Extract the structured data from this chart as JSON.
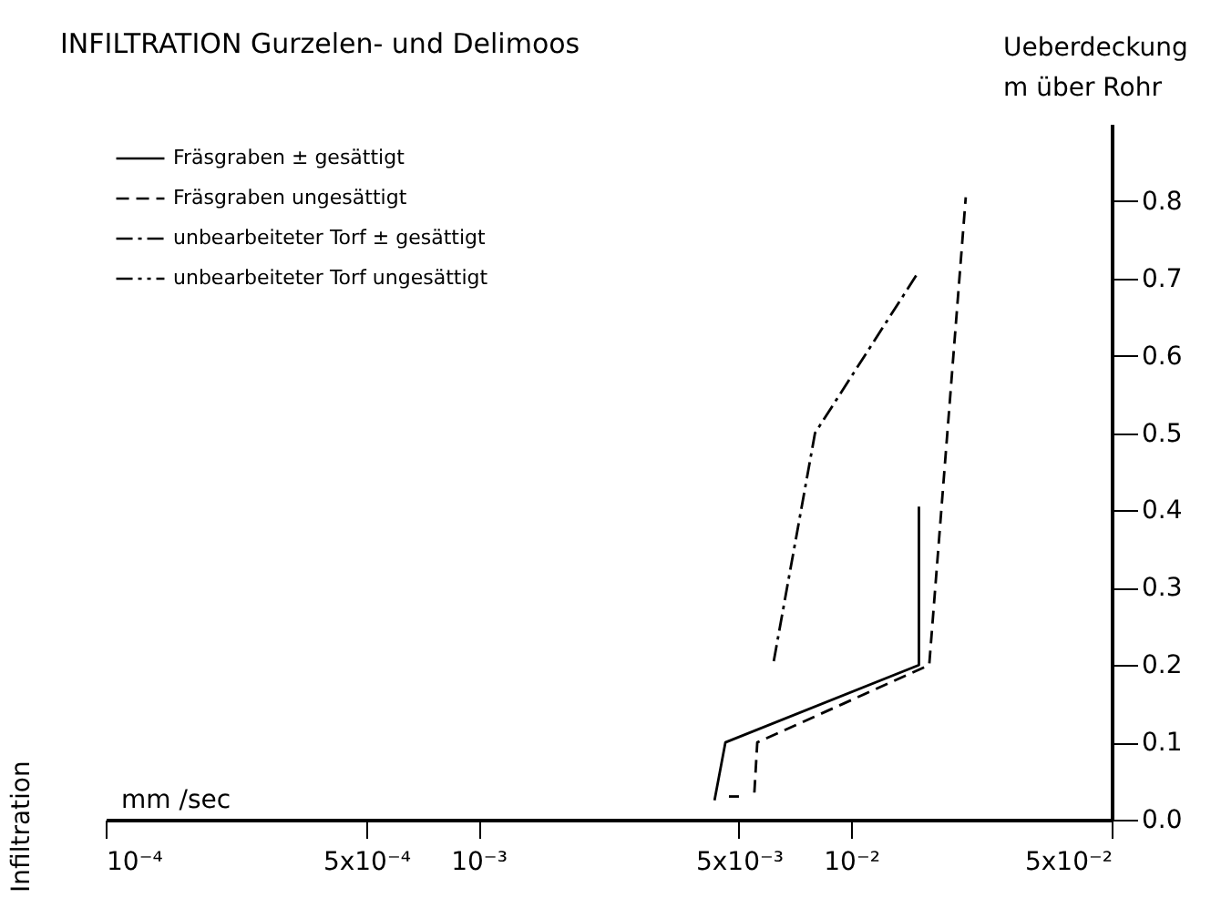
{
  "chart_data": {
    "type": "line",
    "title": "INFILTRATION  Gurzelen- und Delimoos",
    "xlabel": "mm /sec",
    "ylabel": "Ueberdeckung\nm über Rohr",
    "annotations": [
      "Infiltration"
    ],
    "log": "x",
    "xlim": [
      0.0001,
      0.05
    ],
    "xticks": [
      {
        "value": 0.0001,
        "label": "10⁻⁴"
      },
      {
        "value": 0.0005,
        "label": "5x10⁻⁴"
      },
      {
        "value": 0.001,
        "label": "10⁻³"
      },
      {
        "value": 0.005,
        "label": "5x10⁻³"
      },
      {
        "value": 0.01,
        "label": "10⁻²"
      },
      {
        "value": 0.05,
        "label": "5x10⁻²"
      }
    ],
    "ylim": [
      0,
      0.9
    ],
    "yticks": [
      {
        "value": 0,
        "label": "0.0"
      },
      0.1,
      0.2,
      0.3,
      0.4,
      0.5,
      0.6,
      0.7,
      0.8
    ],
    "grid": false,
    "legend": "top left",
    "marker": "none",
    "series": [
      {
        "name": "Fräsgraben ± gesättigt",
        "color": "#000000",
        "line_style": "solid",
        "x": [
          0.0043,
          0.0046,
          0.0152,
          0.0152
        ],
        "values": [
          0.025,
          0.1,
          0.2,
          0.405
        ]
      },
      {
        "name": "Fräsgraben   ungesättigt",
        "color": "#000000",
        "line_style": "dashed",
        "x": [
          0.0055,
          0.0056,
          0.0162,
          0.0203
        ],
        "values": [
          0.035,
          0.1,
          0.2,
          0.805
        ]
      },
      {
        "name": "unbearbeiteter   Torf ± gesättigt",
        "color": "#000000",
        "line_style": "dashdot",
        "x": [
          0.0062,
          0.008,
          0.015
        ],
        "values": [
          0.205,
          0.5,
          0.705
        ]
      },
      {
        "name": "unbearbeiteter   Torf   ungesättigt",
        "color": "#000000",
        "line_style": "dashdotdot",
        "x": [
          0.0047,
          0.005
        ],
        "values": [
          0.03,
          0.03
        ]
      }
    ]
  }
}
